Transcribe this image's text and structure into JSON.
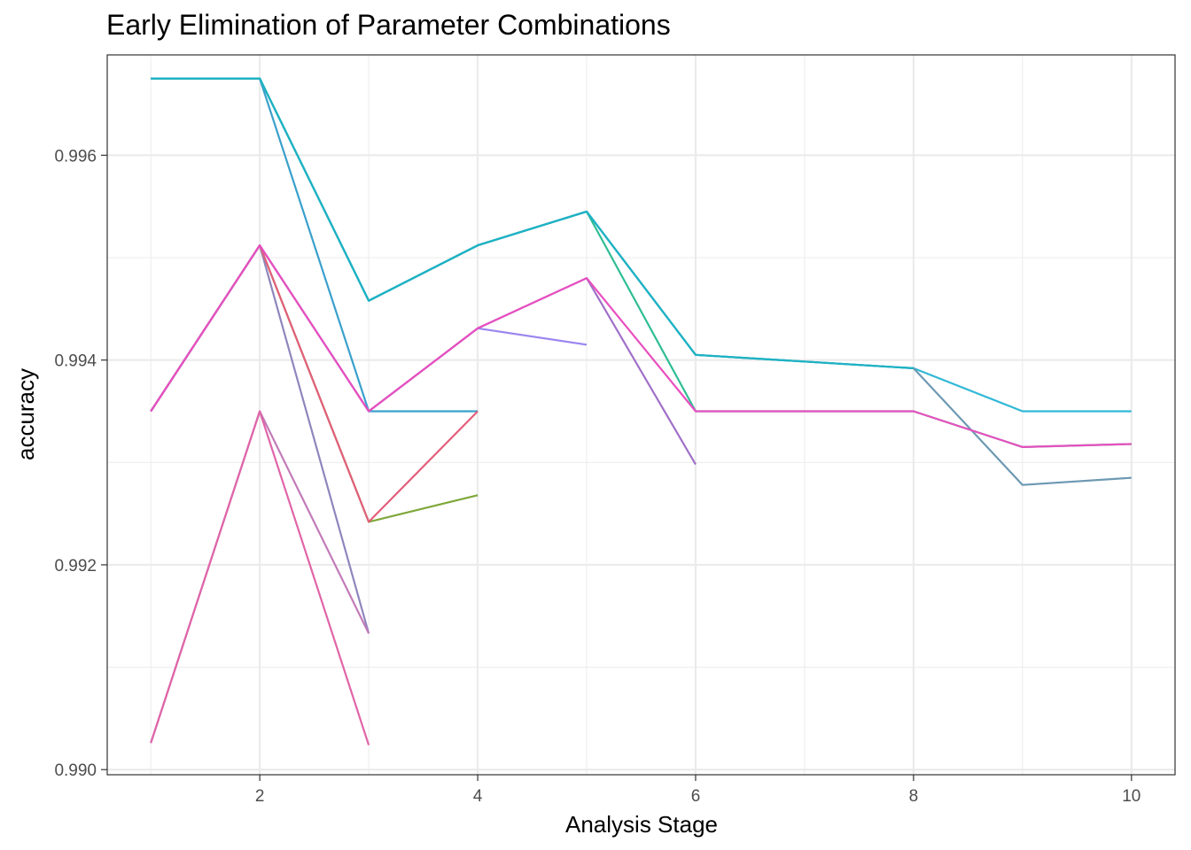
{
  "chart_data": {
    "type": "line",
    "title": "Early Elimination of Parameter Combinations",
    "xlabel": "Analysis Stage",
    "ylabel": "accuracy",
    "xlim": [
      0.6,
      10.4
    ],
    "ylim": [
      0.98995,
      0.99698
    ],
    "x_ticks": [
      2,
      4,
      6,
      8,
      10
    ],
    "x_tick_labels": [
      "2",
      "4",
      "6",
      "8",
      "10"
    ],
    "y_ticks": [
      0.99,
      0.992,
      0.994,
      0.996
    ],
    "y_tick_labels": [
      "0.990",
      "0.992",
      "0.994",
      "0.996"
    ],
    "grid": true,
    "legend": "none",
    "series": [
      {
        "color": "#3aa0cc",
        "x": [
          1,
          2,
          3,
          4
        ],
        "y": [
          0.99675,
          0.99675,
          0.9935,
          0.9935
        ]
      },
      {
        "color": "#2fbe94",
        "x": [
          1,
          2,
          3,
          4,
          5,
          6,
          8,
          9,
          10
        ],
        "y": [
          0.99675,
          0.99675,
          0.99458,
          0.99512,
          0.99545,
          0.9935,
          0.9935,
          0.99315,
          0.99318
        ]
      },
      {
        "color": "#31b8d6",
        "x": [
          1,
          2,
          3,
          4,
          5,
          6,
          8,
          9,
          10
        ],
        "y": [
          0.99675,
          0.99675,
          0.99458,
          0.99512,
          0.99545,
          0.99405,
          0.99392,
          0.9935,
          0.9935
        ]
      },
      {
        "color": "#6d99b3",
        "x": [
          1,
          2,
          3,
          4,
          5,
          6,
          8,
          9,
          10
        ],
        "y": [
          0.99675,
          0.99675,
          0.99458,
          0.99512,
          0.99545,
          0.99405,
          0.99392,
          0.99278,
          0.99285
        ]
      },
      {
        "color": "#1bb3c4",
        "x": [
          1,
          2,
          3,
          4,
          5,
          6,
          8
        ],
        "y": [
          0.99675,
          0.99675,
          0.99458,
          0.99512,
          0.99545,
          0.99405,
          0.99392
        ]
      },
      {
        "color": "#8f86bd",
        "x": [
          1,
          2,
          3
        ],
        "y": [
          0.9935,
          0.99512,
          0.99133
        ]
      },
      {
        "color": "#7fa83a",
        "x": [
          1,
          2,
          3,
          4
        ],
        "y": [
          0.9935,
          0.99512,
          0.99242,
          0.99268
        ]
      },
      {
        "color": "#e35e7a",
        "x": [
          1,
          2,
          3,
          4
        ],
        "y": [
          0.9935,
          0.99512,
          0.99242,
          0.9935
        ]
      },
      {
        "color": "#9b86f0",
        "x": [
          1,
          2,
          3,
          4,
          5
        ],
        "y": [
          0.9935,
          0.99512,
          0.9935,
          0.99431,
          0.99415
        ]
      },
      {
        "color": "#a070c8",
        "x": [
          1,
          2,
          3,
          4,
          5,
          6
        ],
        "y": [
          0.9935,
          0.99512,
          0.9935,
          0.99431,
          0.9948,
          0.99298
        ]
      },
      {
        "color": "#e84fbf",
        "x": [
          1,
          2,
          3,
          4,
          5,
          6,
          8,
          9,
          10
        ],
        "y": [
          0.9935,
          0.99512,
          0.9935,
          0.99431,
          0.9948,
          0.9935,
          0.9935,
          0.99315,
          0.99318
        ]
      },
      {
        "color": "#c27bb8",
        "x": [
          1,
          2,
          3
        ],
        "y": [
          0.99026,
          0.9935,
          0.99133
        ]
      },
      {
        "color": "#e065a8",
        "x": [
          1,
          2,
          3
        ],
        "y": [
          0.99026,
          0.9935,
          0.99024
        ]
      }
    ]
  }
}
